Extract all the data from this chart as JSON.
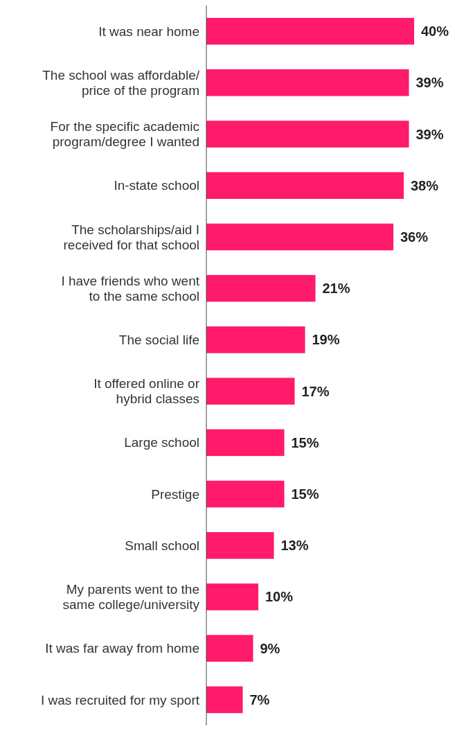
{
  "chart_data": {
    "type": "bar",
    "orientation": "horizontal",
    "color": "#ff1a6b",
    "categories": [
      "It was near home",
      "The school was affordable/\nprice of the program",
      "For the specific academic\nprogram/degree I wanted",
      "In-state school",
      "The scholarships/aid I\nreceived for that school",
      "I have friends who went\nto the same school",
      "The social life",
      "It offered online or\nhybrid classes",
      "Large school",
      "Prestige",
      "Small school",
      "My parents went to the\nsame college/university",
      "It was far away from home",
      "I was recruited for my sport"
    ],
    "values": [
      40,
      39,
      39,
      38,
      36,
      21,
      19,
      17,
      15,
      15,
      13,
      10,
      9,
      7
    ],
    "value_labels": [
      "40%",
      "39%",
      "39%",
      "38%",
      "36%",
      "21%",
      "19%",
      "17%",
      "15%",
      "15%",
      "13%",
      "10%",
      "9%",
      "7%"
    ]
  }
}
